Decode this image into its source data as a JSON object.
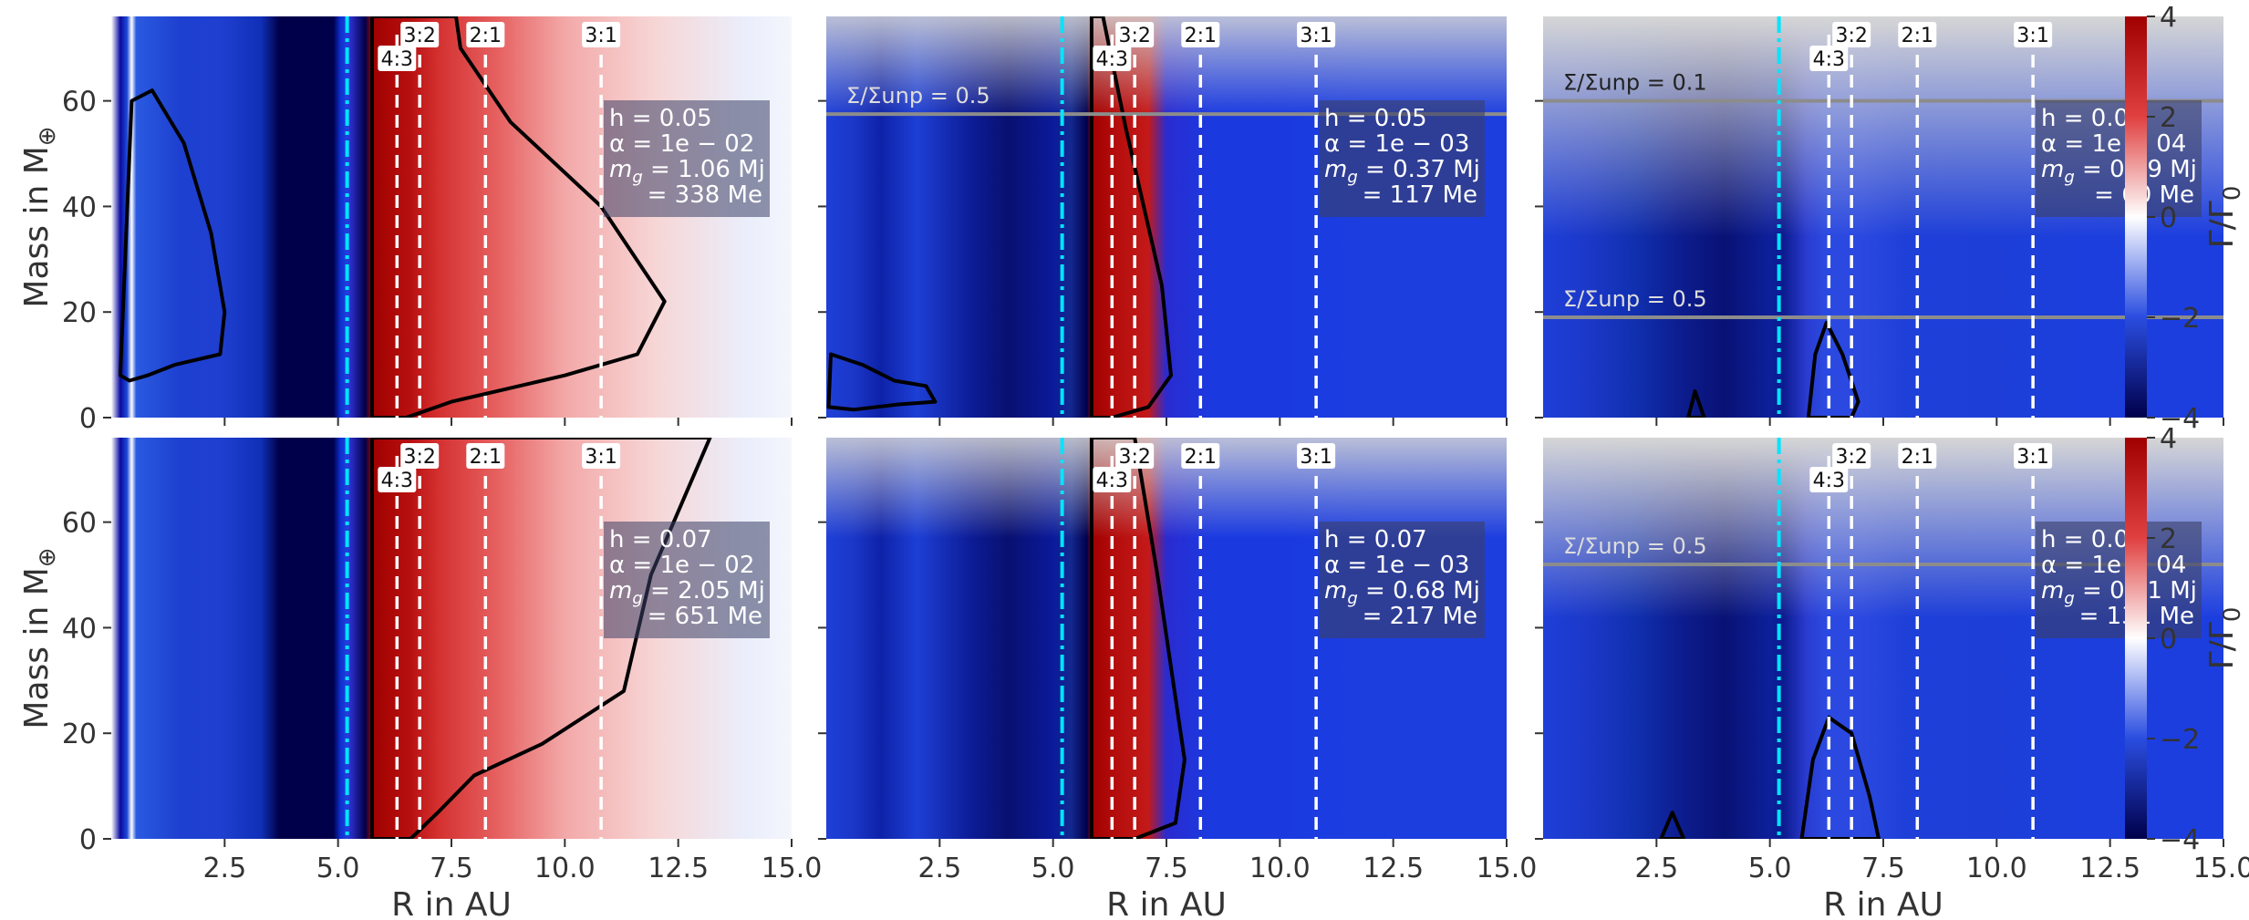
{
  "colors": {
    "positive": "#a00000",
    "zero": "#ffffff",
    "negative": "#00004a",
    "planet_line": "#00e5ff",
    "resonance_line": "#ffffff",
    "sigma_line": "#8c8c8c",
    "contour": "#000000"
  },
  "chart_data": {
    "type": "heatmap",
    "xlabel": "R in AU",
    "ylabel": "Mass in M",
    "ylabel_sub": "⊕",
    "xlim": [
      0,
      15
    ],
    "ylim": [
      0,
      76
    ],
    "xticks": [
      2.5,
      5.0,
      7.5,
      10.0,
      12.5,
      15.0
    ],
    "xtick_labels": [
      "2.5",
      "5.0",
      "7.5",
      "10.0",
      "12.5",
      "15.0"
    ],
    "xtick_labels_last_col": [
      "2.5",
      "5.0",
      "7.5",
      "10.0",
      "12.5",
      "15.0"
    ],
    "yticks": [
      0,
      20,
      40,
      60
    ],
    "ytick_labels": [
      "0",
      "20",
      "40",
      "60"
    ],
    "colorbar": {
      "label": "Γ/Γ",
      "label_sub": "0",
      "range": [
        -4,
        4
      ],
      "ticks": [
        -4,
        -2,
        0,
        2,
        4
      ],
      "tick_labels": [
        "−4",
        "−2",
        "0",
        "2",
        "4"
      ]
    },
    "planet_position_au": 5.2,
    "resonances": [
      {
        "label": "4:3",
        "x": 6.3
      },
      {
        "label": "3:2",
        "x": 6.8
      },
      {
        "label": "2:1",
        "x": 8.25
      },
      {
        "label": "3:1",
        "x": 10.8
      }
    ],
    "panels": [
      {
        "row": 0,
        "col": 0,
        "h": "h = 0.05",
        "alpha": "α = 1e − 02",
        "mg1": "m",
        "mg1_sub": "g",
        "mg1_rest": " = 1.06 Mj",
        "mg2": "= 338 Me",
        "alpha_level": 1,
        "sigma_lines": []
      },
      {
        "row": 0,
        "col": 1,
        "h": "h = 0.05",
        "alpha": "α = 1e − 03",
        "mg1": "m",
        "mg1_sub": "g",
        "mg1_rest": " = 0.37 Mj",
        "mg2": "= 117 Me",
        "alpha_level": 2,
        "sigma_lines": [
          {
            "mass": 57.5,
            "label": "Σ/Σunp = 0.5"
          }
        ]
      },
      {
        "row": 0,
        "col": 2,
        "h": "h = 0.05",
        "alpha": "α = 1e − 04",
        "mg1": "m",
        "mg1_sub": "g",
        "mg1_rest": " = 0.19 Mj",
        "mg2": "= 60 Me",
        "alpha_level": 3,
        "sigma_lines": [
          {
            "mass": 60,
            "label": "Σ/Σunp = 0.1"
          },
          {
            "mass": 19,
            "label": "Σ/Σunp = 0.5"
          }
        ]
      },
      {
        "row": 1,
        "col": 0,
        "h": "h = 0.07",
        "alpha": "α = 1e − 02",
        "mg1": "m",
        "mg1_sub": "g",
        "mg1_rest": " = 2.05 Mj",
        "mg2": "= 651 Me",
        "alpha_level": 1,
        "sigma_lines": []
      },
      {
        "row": 1,
        "col": 1,
        "h": "h = 0.07",
        "alpha": "α = 1e − 03",
        "mg1": "m",
        "mg1_sub": "g",
        "mg1_rest": " = 0.68 Mj",
        "mg2": "= 217 Me",
        "alpha_level": 2,
        "sigma_lines": []
      },
      {
        "row": 1,
        "col": 2,
        "h": "h = 0.07",
        "alpha": "α = 1e − 04",
        "mg1": "m",
        "mg1_sub": "g",
        "mg1_rest": " = 0.41 Mj",
        "mg2": "= 131 Me",
        "alpha_level": 3,
        "sigma_lines": [
          {
            "mass": 52,
            "label": "Σ/Σunp = 0.5"
          }
        ]
      }
    ]
  }
}
